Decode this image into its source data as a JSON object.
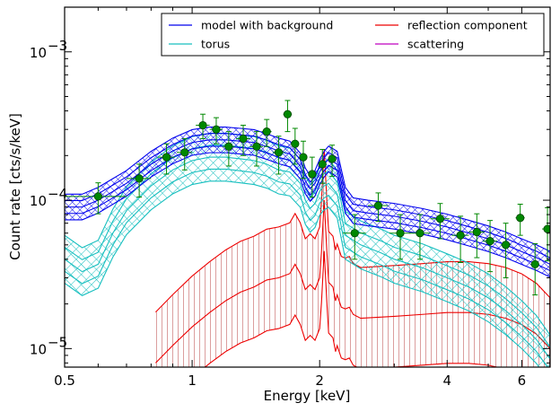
{
  "chart_data": {
    "type": "line",
    "xlabel": "Energy [keV]",
    "ylabel": "Count rate [cts/s/keV]",
    "x_scale": "log",
    "y_scale": "log",
    "xlim": [
      0.5,
      7.0
    ],
    "ylim": [
      7.5e-06,
      0.002
    ],
    "x_ticks": [
      0.5,
      1,
      2,
      4,
      6
    ],
    "x_tick_labels": [
      "0.5",
      "1",
      "2",
      "4",
      "6"
    ],
    "y_ticks": [
      1e-05,
      0.0001,
      0.001
    ],
    "y_tick_labels": [
      "10",
      "10",
      "10"
    ],
    "y_tick_exponents": [
      "−5",
      "−4",
      "−3"
    ],
    "legend_position": "top-right",
    "series": [
      {
        "name": "model with background",
        "color": "#0000ee",
        "x": [
          0.5,
          0.55,
          0.6,
          0.7,
          0.8,
          0.9,
          1.0,
          1.1,
          1.2,
          1.3,
          1.4,
          1.5,
          1.6,
          1.7,
          1.8,
          1.85,
          1.9,
          1.95,
          2.0,
          2.05,
          2.1,
          2.2,
          2.3,
          2.4,
          2.6,
          3.0,
          3.5,
          4.0,
          4.5,
          5.0,
          5.5,
          6.0,
          6.5,
          7.0
        ],
        "y": [
          9e-05,
          9e-05,
          0.0001,
          0.00013,
          0.000175,
          0.000215,
          0.000245,
          0.000255,
          0.000255,
          0.00025,
          0.000245,
          0.00023,
          0.000215,
          0.000205,
          0.00017,
          0.000135,
          0.00012,
          0.00013,
          0.000155,
          0.000175,
          0.00019,
          0.000175,
          0.0001,
          8.5e-05,
          8.2e-05,
          7.8e-05,
          7.2e-05,
          6.6e-05,
          6e-05,
          5.5e-05,
          5e-05,
          4.5e-05,
          4.1e-05,
          3.7e-05
        ],
        "band_ratio": 1.22
      },
      {
        "name": "torus",
        "color": "#17bfbf",
        "x": [
          0.5,
          0.55,
          0.6,
          0.65,
          0.7,
          0.8,
          0.9,
          1.0,
          1.1,
          1.2,
          1.3,
          1.4,
          1.5,
          1.6,
          1.7,
          1.8,
          1.85,
          1.9,
          1.95,
          2.0,
          2.05,
          2.1,
          2.2,
          2.3,
          2.5,
          2.8,
          3.0,
          3.5,
          4.0,
          4.5,
          5.0,
          5.5,
          6.0,
          6.5,
          7.0
        ],
        "y": [
          4e-05,
          3.3e-05,
          3.7e-05,
          6e-05,
          8.5e-05,
          0.000125,
          0.00016,
          0.000185,
          0.000195,
          0.000195,
          0.00019,
          0.000185,
          0.000175,
          0.00016,
          0.000155,
          0.00013,
          0.0001,
          8.8e-05,
          9.5e-05,
          0.000115,
          0.000125,
          0.00013,
          0.00011,
          5.8e-05,
          5e-05,
          4.4e-05,
          4e-05,
          3.5e-05,
          3e-05,
          2.6e-05,
          2.2e-05,
          1.8e-05,
          1.45e-05,
          1.15e-05,
          8.5e-06
        ],
        "band_ratio": 1.45
      },
      {
        "name": "reflection component",
        "color": "#ee0000",
        "x": [
          0.82,
          0.9,
          1.0,
          1.1,
          1.2,
          1.3,
          1.4,
          1.5,
          1.6,
          1.7,
          1.75,
          1.8,
          1.85,
          1.9,
          1.95,
          2.0,
          2.02,
          2.05,
          2.08,
          2.1,
          2.15,
          2.18,
          2.2,
          2.25,
          2.3,
          2.35,
          2.4,
          2.5,
          3.0,
          3.5,
          4.0,
          4.5,
          5.0,
          5.5,
          6.0,
          6.5,
          7.0
        ],
        "y": [
          8e-06,
          1.05e-05,
          1.4e-05,
          1.75e-05,
          2.1e-05,
          2.4e-05,
          2.6e-05,
          2.9e-05,
          3e-05,
          3.2e-05,
          3.7e-05,
          3.2e-05,
          2.5e-05,
          2.7e-05,
          2.5e-05,
          3e-05,
          4.5e-05,
          0.0001,
          4.5e-05,
          2.8e-05,
          2.6e-05,
          2.1e-05,
          2.3e-05,
          1.9e-05,
          1.85e-05,
          1.9e-05,
          1.7e-05,
          1.6e-05,
          1.65e-05,
          1.7e-05,
          1.75e-05,
          1.75e-05,
          1.7e-05,
          1.6e-05,
          1.45e-05,
          1.25e-05,
          1e-05
        ],
        "band_ratio": 2.2
      },
      {
        "name": "scattering",
        "color": "#bf00bf",
        "x": [],
        "y": []
      }
    ],
    "data_points": {
      "color": "#008800",
      "x": [
        0.6,
        0.75,
        0.87,
        0.96,
        1.06,
        1.14,
        1.22,
        1.32,
        1.42,
        1.5,
        1.6,
        1.68,
        1.75,
        1.83,
        1.92,
        2.03,
        2.14,
        2.42,
        2.75,
        3.1,
        3.45,
        3.85,
        4.3,
        4.7,
        5.05,
        5.5,
        5.95,
        6.45,
        6.9
      ],
      "y": [
        0.000106,
        0.00014,
        0.000195,
        0.00021,
        0.00032,
        0.0003,
        0.00023,
        0.00026,
        0.00023,
        0.00029,
        0.00021,
        0.00038,
        0.00024,
        0.000195,
        0.00015,
        0.000175,
        0.00019,
        6e-05,
        9.2e-05,
        6e-05,
        6e-05,
        7.5e-05,
        5.8e-05,
        6.1e-05,
        5.3e-05,
        5e-05,
        7.6e-05,
        3.7e-05,
        6.4e-05
      ],
      "xerr": [
        0.1,
        0.05,
        0.04,
        0.04,
        0.04,
        0.04,
        0.04,
        0.05,
        0.05,
        0.04,
        0.05,
        0.04,
        0.04,
        0.04,
        0.04,
        0.04,
        0.04,
        0.15,
        0.15,
        0.18,
        0.2,
        0.2,
        0.2,
        0.2,
        0.2,
        0.15,
        0.15,
        0.15,
        0.2
      ],
      "yerr": [
        2.5e-05,
        3.5e-05,
        4.5e-05,
        5e-05,
        6e-05,
        6e-05,
        6e-05,
        6e-05,
        6e-05,
        6e-05,
        6e-05,
        9e-05,
        6.5e-05,
        5.5e-05,
        4.5e-05,
        4.5e-05,
        4.5e-05,
        2e-05,
        2e-05,
        2e-05,
        2e-05,
        2e-05,
        2e-05,
        2e-05,
        2e-05,
        2e-05,
        1.8e-05,
        1.4e-05,
        2.5e-05
      ]
    },
    "legend": [
      "model with background",
      "torus",
      "reflection component",
      "scattering"
    ]
  }
}
